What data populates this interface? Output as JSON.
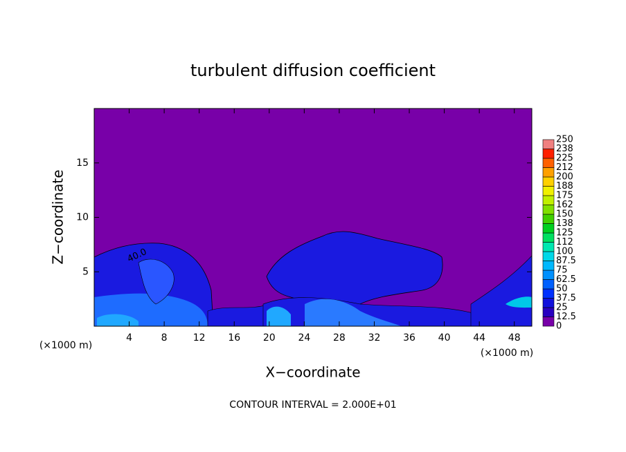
{
  "chart_data": {
    "type": "heatmap",
    "title": "turbulent diffusion coefficient",
    "x_label": "X−coordinate",
    "y_label": "Z−coordinate",
    "x_unit_label": "(×1000 m)",
    "y_unit_label": "(×1000 m)",
    "footer": "CONTOUR INTERVAL = 2.000E+01",
    "annotations": [
      "40.0"
    ],
    "xlim": [
      0,
      50
    ],
    "xticks": [
      4,
      8,
      12,
      16,
      20,
      24,
      28,
      32,
      36,
      40,
      44,
      48
    ],
    "ylim": [
      0,
      20
    ],
    "yticks": [
      5,
      10,
      15
    ],
    "colorbar": {
      "levels": [
        0,
        12.5,
        25,
        37.5,
        50,
        62.5,
        75,
        87.5,
        100,
        112,
        125,
        138,
        150,
        162,
        175,
        188,
        200,
        212,
        225,
        238,
        250
      ],
      "colors": [
        "#7800a8",
        "#2800c0",
        "#1010dc",
        "#0030ff",
        "#0060ff",
        "#0090ff",
        "#00b8ff",
        "#00d8e8",
        "#00e8b0",
        "#00e060",
        "#00d020",
        "#40d000",
        "#80e000",
        "#c0f000",
        "#f0f000",
        "#ffd000",
        "#ffa000",
        "#ff6000",
        "#ff2000",
        "#f08080"
      ]
    }
  }
}
